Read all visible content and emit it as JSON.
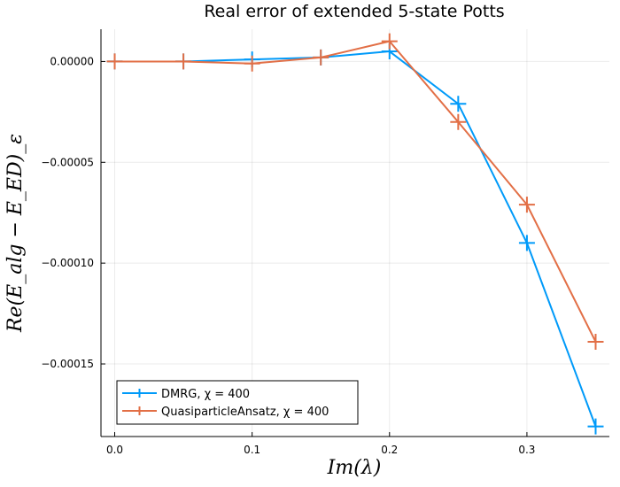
{
  "chart_data": {
    "type": "line",
    "title": "Real error of extended 5-state Potts",
    "xlabel": "Im(λ)",
    "ylabel": "Re(E_alg − E_ED)_ε",
    "xlim": [
      -0.01,
      0.36
    ],
    "ylim": [
      -0.000186,
      1.6e-05
    ],
    "xticks": [
      0.0,
      0.1,
      0.2,
      0.3
    ],
    "xtick_labels": [
      "0.0",
      "0.1",
      "0.2",
      "0.3"
    ],
    "yticks": [
      0.0,
      -5e-05,
      -0.0001,
      -0.00015
    ],
    "ytick_labels": [
      "0.00000",
      "−0.00005",
      "−0.00010",
      "−0.00015"
    ],
    "grid": true,
    "legend_position": "bottom-left",
    "series": [
      {
        "name": "DMRG, χ = 400",
        "color": "#009af9",
        "marker": "cross",
        "x": [
          0.0,
          0.05,
          0.1,
          0.15,
          0.2,
          0.25,
          0.3,
          0.35
        ],
        "y": [
          0.0,
          0.0,
          1e-06,
          2e-06,
          5e-06,
          -2.1e-05,
          -9e-05,
          -0.000181
        ]
      },
      {
        "name": "QuasiparticleAnsatz, χ = 400",
        "color": "#e26f46",
        "marker": "cross",
        "x": [
          0.0,
          0.05,
          0.1,
          0.15,
          0.2,
          0.25,
          0.3,
          0.35
        ],
        "y": [
          0.0,
          0.0,
          -1e-06,
          2e-06,
          1e-05,
          -3e-05,
          -7.1e-05,
          -0.000139
        ]
      }
    ]
  }
}
